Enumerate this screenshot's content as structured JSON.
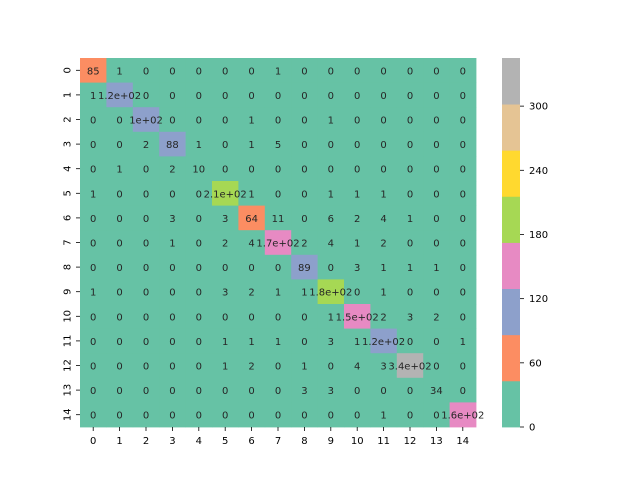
{
  "chart_data": {
    "type": "heatmap",
    "title": "",
    "xlabel": "",
    "ylabel": "",
    "x_categories": [
      "0",
      "1",
      "2",
      "3",
      "4",
      "5",
      "6",
      "7",
      "8",
      "9",
      "10",
      "11",
      "12",
      "13",
      "14"
    ],
    "y_categories": [
      "0",
      "1",
      "2",
      "3",
      "4",
      "5",
      "6",
      "7",
      "8",
      "9",
      "10",
      "11",
      "12",
      "13",
      "14"
    ],
    "value_range": [
      0,
      345
    ],
    "colormap": "Set2",
    "colormap_colors": [
      "#66c2a5",
      "#fc8d62",
      "#8da0cb",
      "#e78ac3",
      "#a6d854",
      "#ffd92f",
      "#e5c494",
      "#b3b3b3"
    ],
    "colorbar_ticks": [
      0,
      60,
      120,
      180,
      240,
      300
    ],
    "colorbar_tick_labels": [
      "0",
      "60",
      "120",
      "180",
      "240",
      "300"
    ],
    "values": [
      [
        85,
        1,
        0,
        0,
        0,
        0,
        0,
        1,
        0,
        0,
        0,
        0,
        0,
        0,
        0
      ],
      [
        1,
        120,
        0,
        0,
        0,
        0,
        0,
        0,
        0,
        0,
        0,
        0,
        0,
        0,
        0
      ],
      [
        0,
        0,
        100,
        0,
        0,
        0,
        1,
        0,
        0,
        1,
        0,
        0,
        0,
        0,
        0
      ],
      [
        0,
        0,
        2,
        88,
        1,
        0,
        1,
        5,
        0,
        0,
        0,
        0,
        0,
        0,
        0
      ],
      [
        0,
        1,
        0,
        2,
        10,
        0,
        0,
        0,
        0,
        0,
        0,
        0,
        0,
        0,
        0
      ],
      [
        1,
        0,
        0,
        0,
        0,
        210,
        1,
        0,
        0,
        1,
        1,
        1,
        0,
        0,
        0
      ],
      [
        0,
        0,
        0,
        3,
        0,
        3,
        64,
        11,
        0,
        6,
        2,
        4,
        1,
        0,
        0
      ],
      [
        0,
        0,
        0,
        1,
        0,
        2,
        4,
        170,
        2,
        4,
        1,
        2,
        0,
        0,
        0
      ],
      [
        0,
        0,
        0,
        0,
        0,
        0,
        0,
        0,
        89,
        0,
        3,
        1,
        1,
        1,
        0
      ],
      [
        1,
        0,
        0,
        0,
        0,
        3,
        2,
        1,
        1,
        180,
        0,
        1,
        0,
        0,
        0
      ],
      [
        0,
        0,
        0,
        0,
        0,
        0,
        0,
        0,
        0,
        1,
        150,
        2,
        3,
        2,
        0
      ],
      [
        0,
        0,
        0,
        0,
        0,
        1,
        1,
        1,
        0,
        3,
        1,
        120,
        0,
        0,
        1
      ],
      [
        0,
        0,
        0,
        0,
        0,
        1,
        2,
        0,
        1,
        0,
        4,
        3,
        340,
        0,
        0
      ],
      [
        0,
        0,
        0,
        0,
        0,
        0,
        0,
        0,
        3,
        3,
        0,
        0,
        0,
        34,
        0
      ],
      [
        0,
        0,
        0,
        0,
        0,
        0,
        0,
        0,
        0,
        0,
        0,
        1,
        0,
        0,
        160
      ]
    ],
    "cell_labels": [
      [
        "85",
        "1",
        "0",
        "0",
        "0",
        "0",
        "0",
        "1",
        "0",
        "0",
        "0",
        "0",
        "0",
        "0",
        "0"
      ],
      [
        "1",
        "1.2e+02",
        "0",
        "0",
        "0",
        "0",
        "0",
        "0",
        "0",
        "0",
        "0",
        "0",
        "0",
        "0",
        "0"
      ],
      [
        "0",
        "0",
        "1e+02",
        "0",
        "0",
        "0",
        "1",
        "0",
        "0",
        "1",
        "0",
        "0",
        "0",
        "0",
        "0"
      ],
      [
        "0",
        "0",
        "2",
        "88",
        "1",
        "0",
        "1",
        "5",
        "0",
        "0",
        "0",
        "0",
        "0",
        "0",
        "0"
      ],
      [
        "0",
        "1",
        "0",
        "2",
        "10",
        "0",
        "0",
        "0",
        "0",
        "0",
        "0",
        "0",
        "0",
        "0",
        "0"
      ],
      [
        "1",
        "0",
        "0",
        "0",
        "0",
        "2.1e+02",
        "1",
        "0",
        "0",
        "1",
        "1",
        "1",
        "0",
        "0",
        "0"
      ],
      [
        "0",
        "0",
        "0",
        "3",
        "0",
        "3",
        "64",
        "11",
        "0",
        "6",
        "2",
        "4",
        "1",
        "0",
        "0"
      ],
      [
        "0",
        "0",
        "0",
        "1",
        "0",
        "2",
        "4",
        "1.7e+02",
        "2",
        "4",
        "1",
        "2",
        "0",
        "0",
        "0"
      ],
      [
        "0",
        "0",
        "0",
        "0",
        "0",
        "0",
        "0",
        "0",
        "89",
        "0",
        "3",
        "1",
        "1",
        "1",
        "0"
      ],
      [
        "1",
        "0",
        "0",
        "0",
        "0",
        "3",
        "2",
        "1",
        "1",
        "1.8e+02",
        "0",
        "1",
        "0",
        "0",
        "0"
      ],
      [
        "0",
        "0",
        "0",
        "0",
        "0",
        "0",
        "0",
        "0",
        "0",
        "1",
        "1.5e+02",
        "2",
        "3",
        "2",
        "0"
      ],
      [
        "0",
        "0",
        "0",
        "0",
        "0",
        "1",
        "1",
        "1",
        "0",
        "3",
        "1",
        "1.2e+02",
        "0",
        "0",
        "1"
      ],
      [
        "0",
        "0",
        "0",
        "0",
        "0",
        "1",
        "2",
        "0",
        "1",
        "0",
        "4",
        "3",
        "3.4e+02",
        "0",
        "0"
      ],
      [
        "0",
        "0",
        "0",
        "0",
        "0",
        "0",
        "0",
        "0",
        "3",
        "3",
        "0",
        "0",
        "0",
        "34",
        "0"
      ],
      [
        "0",
        "0",
        "0",
        "0",
        "0",
        "0",
        "0",
        "0",
        "0",
        "0",
        "0",
        "1",
        "0",
        "0",
        "1.6e+02"
      ]
    ],
    "grid": false,
    "legend": "colorbar-right"
  }
}
